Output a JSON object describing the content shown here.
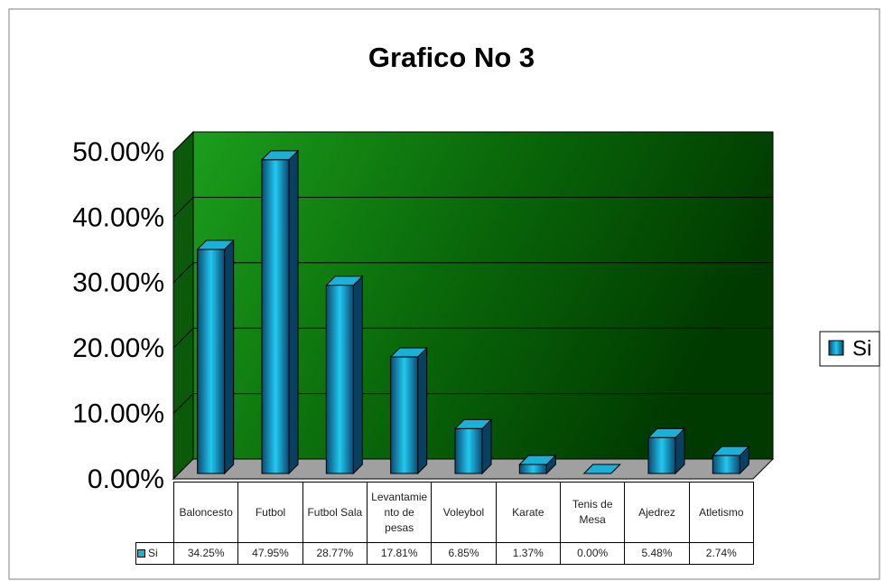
{
  "chart_data": {
    "type": "bar3d",
    "title": "Grafico No 3",
    "categories": [
      "Baloncesto",
      "Futbol",
      "Futbol Sala",
      "Levantamiento de pesas",
      "Voleybol",
      "Karate",
      "Tenis de Mesa",
      "Ajedrez",
      "Atletismo"
    ],
    "series": [
      {
        "name": "Si",
        "color": "#1ab0d8",
        "values": [
          34.25,
          47.95,
          28.77,
          17.81,
          6.85,
          1.37,
          0,
          5.48,
          2.74
        ],
        "value_labels": [
          "34.25%",
          "47.95%",
          "28.77%",
          "17.81%",
          "6.85%",
          "1.37%",
          "0.00%",
          "5.48%",
          "2.74%"
        ]
      }
    ],
    "ylim": [
      0,
      50
    ],
    "yticks": [
      {
        "value": 0,
        "label": "0.00%"
      },
      {
        "value": 10,
        "label": "10.00%"
      },
      {
        "value": 20,
        "label": "20.00%"
      },
      {
        "value": 30,
        "label": "30.00%"
      },
      {
        "value": 40,
        "label": "40.00%"
      },
      {
        "value": 50,
        "label": "50.00%"
      }
    ],
    "grid": true,
    "legend": "right",
    "data_table": true
  }
}
